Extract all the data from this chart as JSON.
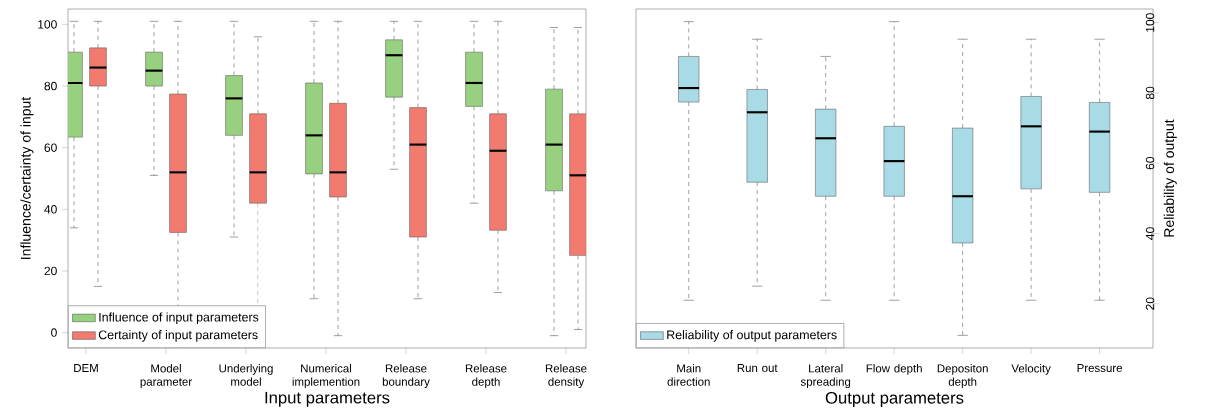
{
  "chart_data": [
    {
      "type": "box",
      "xlabel": "Input parameters",
      "ylabel": "Influence/certainty of input",
      "categories": [
        "DEM",
        "Model parameter",
        "Underlying model",
        "Numerical implemention",
        "Release boundary",
        "Release depth",
        "Release density"
      ],
      "ylim": [
        -5,
        105
      ],
      "yticks": [
        0,
        20,
        40,
        60,
        80,
        100
      ],
      "legend": "bottom left",
      "series": [
        {
          "name": "Influence of input parameters",
          "color": "#97d17f",
          "boxes": [
            {
              "low": 34,
              "q1": 63.4,
              "median": 81,
              "q3": 91,
              "high": 101
            },
            {
              "low": 51,
              "q1": 80,
              "median": 85,
              "q3": 91,
              "high": 101
            },
            {
              "low": 31,
              "q1": 64,
              "median": 76,
              "q3": 83.4,
              "high": 101
            },
            {
              "low": 11,
              "q1": 51.5,
              "median": 64,
              "q3": 81,
              "high": 101
            },
            {
              "low": 53,
              "q1": 76.4,
              "median": 90,
              "q3": 95,
              "high": 101
            },
            {
              "low": 42,
              "q1": 73.4,
              "median": 81,
              "q3": 91,
              "high": 101
            },
            {
              "low": -1,
              "q1": 46,
              "median": 61,
              "q3": 79,
              "high": 99
            }
          ]
        },
        {
          "name": "Certainty of input parameters",
          "color": "#f27b6f",
          "boxes": [
            {
              "low": 15,
              "q1": 80,
              "median": 86,
              "q3": 92.4,
              "high": 101
            },
            {
              "low": null,
              "q1": 32.5,
              "median": 52,
              "q3": 77.4,
              "high": 101
            },
            {
              "low": null,
              "q1": 42,
              "median": 52,
              "q3": 71,
              "high": 96
            },
            {
              "low": -1,
              "q1": 44,
              "median": 52,
              "q3": 74.4,
              "high": 101
            },
            {
              "low": 11,
              "q1": 31,
              "median": 61,
              "q3": 73,
              "high": 101
            },
            {
              "low": 13,
              "q1": 33.2,
              "median": 59,
              "q3": 71,
              "high": 101
            },
            {
              "low": 1,
              "q1": 25,
              "median": 51,
              "q3": 71,
              "high": 99
            }
          ]
        }
      ]
    },
    {
      "type": "box",
      "xlabel": "Output parameters",
      "y2label": "Reliability of output",
      "categories": [
        "Main direction",
        "Run out",
        "Lateral spreading",
        "Flow depth",
        "Depositon depth",
        "Velocity",
        "Pressure"
      ],
      "y2lim": [
        7.4,
        103.9
      ],
      "y2ticks": [
        20,
        40,
        60,
        80,
        100
      ],
      "legend": "bottom left",
      "series": [
        {
          "name": "Reliability of output parameters",
          "color": "#a8dbe6",
          "axis": "y2",
          "boxes": [
            {
              "low": 21,
              "q1": 77.4,
              "median": 81.4,
              "q3": 90.4,
              "high": 100.3
            },
            {
              "low": 25,
              "q1": 54.6,
              "median": 74.5,
              "q3": 81,
              "high": 95.3
            },
            {
              "low": 21,
              "q1": 50.6,
              "median": 67.1,
              "q3": 75.4,
              "high": 90.4
            },
            {
              "low": 21,
              "q1": 50.6,
              "median": 60.6,
              "q3": 70.5,
              "high": 100.3
            },
            {
              "low": 11,
              "q1": 37.3,
              "median": 50.6,
              "q3": 70,
              "high": 95.3
            },
            {
              "low": 21,
              "q1": 52.7,
              "median": 70.5,
              "q3": 79,
              "high": 95.3
            },
            {
              "low": 21,
              "q1": 51.7,
              "median": 69,
              "q3": 77.3,
              "high": 95.3
            }
          ]
        }
      ]
    }
  ]
}
